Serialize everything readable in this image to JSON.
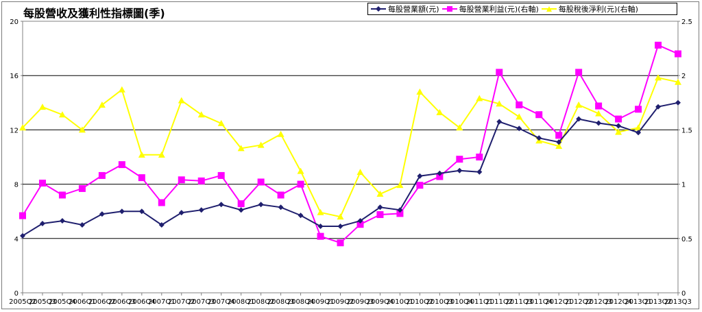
{
  "chart_data": {
    "type": "line",
    "title": "每股營收及獲利性指標圖(季)",
    "categories": [
      "2005Q2",
      "2005Q3",
      "2005Q4",
      "2006Q1",
      "2006Q2",
      "2006Q3",
      "2006Q4",
      "2007Q1",
      "2007Q2",
      "2007Q3",
      "2007Q4",
      "2008Q1",
      "2008Q2",
      "2008Q3",
      "2008Q4",
      "2009Q1",
      "2009Q2",
      "2009Q3",
      "2009Q4",
      "2010Q1",
      "2010Q2",
      "2010Q3",
      "2010Q4",
      "2011Q1",
      "2011Q2",
      "2011Q3",
      "2011Q4",
      "2012Q1",
      "2012Q2",
      "2012Q3",
      "2012Q4",
      "2013Q1",
      "2013Q2",
      "2013Q3"
    ],
    "y_left": {
      "ylim": [
        0,
        20
      ],
      "ticks": [
        "0",
        "4",
        "8",
        "12",
        "16",
        "20"
      ]
    },
    "y_right": {
      "ylim": [
        0,
        2.5
      ],
      "ticks": [
        "0",
        "0.5",
        "1",
        "1.5",
        "2",
        "2.5"
      ]
    },
    "grid": "horizontal",
    "legend_position": "top-right",
    "series": [
      {
        "name": "每股營業額(元)",
        "axis": "left",
        "color": "#1f1f6e",
        "marker": "diamond",
        "values": [
          4.2,
          5.1,
          5.3,
          5.0,
          5.8,
          6.0,
          6.0,
          5.0,
          5.9,
          6.1,
          6.5,
          6.1,
          6.5,
          6.3,
          5.7,
          4.9,
          4.9,
          5.3,
          6.3,
          6.1,
          8.6,
          8.8,
          9.0,
          8.9,
          12.6,
          12.1,
          11.4,
          11.1,
          12.8,
          12.5,
          12.3,
          11.8,
          13.7,
          14.0
        ]
      },
      {
        "name": "每股營業利益(元)(右軸)",
        "axis": "right",
        "color": "#ff00ff",
        "marker": "square",
        "values": [
          0.71,
          1.01,
          0.9,
          0.96,
          1.08,
          1.18,
          1.06,
          0.83,
          1.04,
          1.03,
          1.08,
          0.82,
          1.02,
          0.9,
          1.0,
          0.52,
          0.46,
          0.63,
          0.72,
          0.73,
          0.99,
          1.07,
          1.23,
          1.25,
          2.03,
          1.73,
          1.64,
          1.45,
          2.03,
          1.72,
          1.6,
          1.69,
          2.28,
          2.2
        ]
      },
      {
        "name": "每股稅後淨利(元)(右軸)",
        "axis": "right",
        "color": "#ffff00",
        "marker": "triangle",
        "values": [
          1.52,
          1.71,
          1.64,
          1.5,
          1.73,
          1.87,
          1.27,
          1.27,
          1.77,
          1.64,
          1.56,
          1.33,
          1.36,
          1.46,
          1.12,
          0.74,
          0.7,
          1.11,
          0.91,
          0.99,
          1.85,
          1.66,
          1.52,
          1.79,
          1.74,
          1.62,
          1.4,
          1.35,
          1.73,
          1.65,
          1.48,
          1.52,
          1.98,
          1.94
        ]
      }
    ]
  }
}
